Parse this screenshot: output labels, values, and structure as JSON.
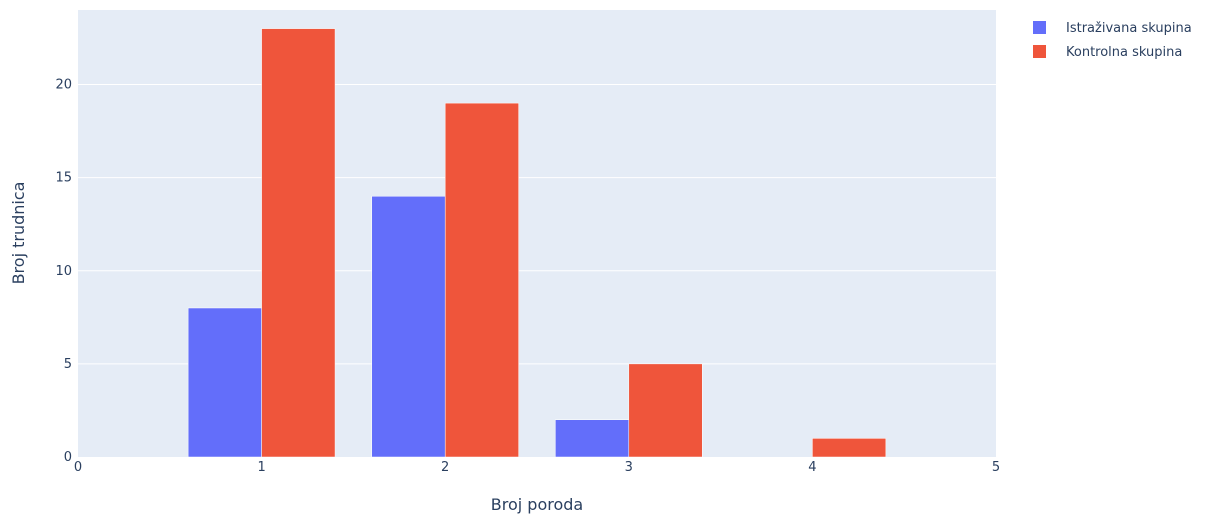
{
  "chart_data": {
    "type": "bar",
    "xlabel": "Broj poroda",
    "ylabel": "Broj trudnica",
    "categories": [
      1,
      2,
      3,
      4
    ],
    "xlim": [
      0,
      5
    ],
    "ylim": [
      0,
      24
    ],
    "x_ticks": [
      "0",
      "1",
      "2",
      "3",
      "4",
      "5"
    ],
    "y_ticks": [
      "0",
      "5",
      "10",
      "15",
      "20"
    ],
    "grid": true,
    "legend_position": "top-right",
    "series": [
      {
        "name": "Istraživana skupina",
        "color": "#636efa",
        "values": [
          8,
          14,
          2,
          0
        ]
      },
      {
        "name": "Kontrolna skupina",
        "color": "#ef553b",
        "values": [
          23,
          19,
          5,
          1
        ]
      }
    ],
    "colors": {
      "plot_background": "#e5ecf6",
      "grid": "#ffffff",
      "text": "#2a3f5f"
    }
  }
}
